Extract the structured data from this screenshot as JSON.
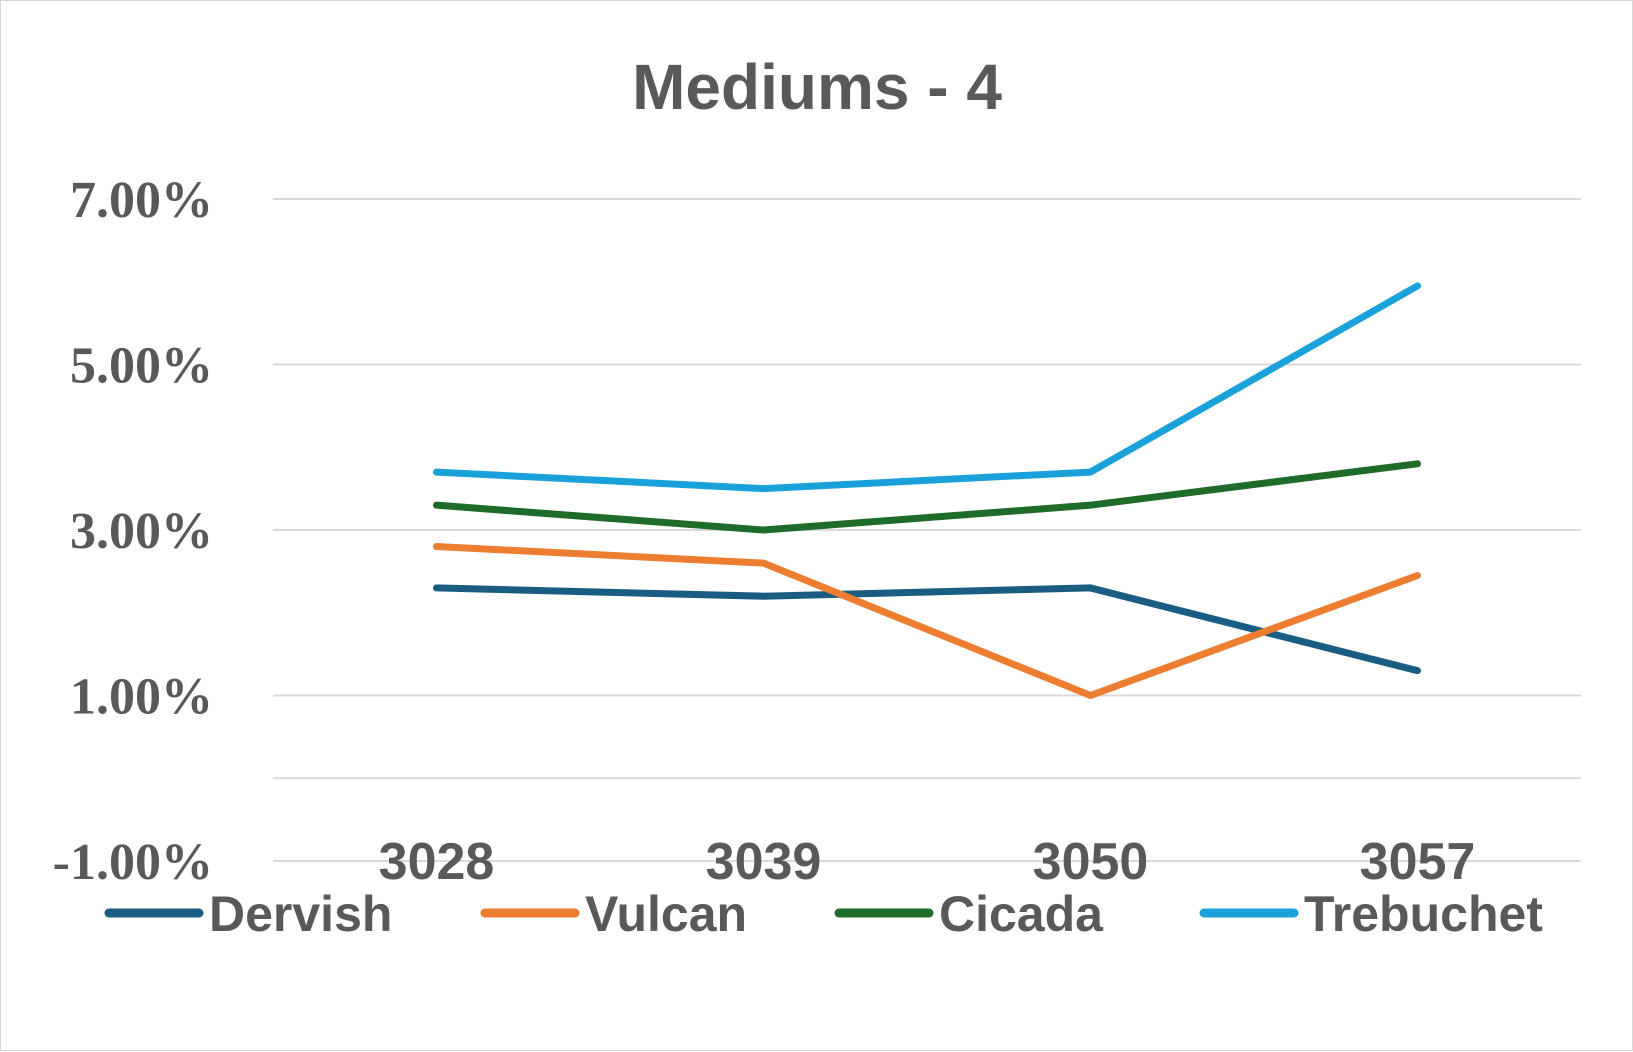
{
  "chart_data": {
    "type": "line",
    "title": "Mediums - 4",
    "categories": [
      "3028",
      "3039",
      "3050",
      "3057"
    ],
    "y_ticks": [
      "-1.00%",
      "1.00%",
      "3.00%",
      "5.00%",
      "7.00%"
    ],
    "ylim": [
      -1.0,
      7.0
    ],
    "y_gridlines": [
      -1.0,
      0.0,
      1.0,
      3.0,
      5.0,
      7.0
    ],
    "grid": true,
    "legend_position": "bottom",
    "series": [
      {
        "name": "Dervish",
        "color": "#1a5d82",
        "values": [
          2.3,
          2.2,
          2.3,
          1.3
        ]
      },
      {
        "name": "Vulcan",
        "color": "#ed7d31",
        "values": [
          2.8,
          2.6,
          1.0,
          2.45
        ]
      },
      {
        "name": "Cicada",
        "color": "#1e6b2a",
        "values": [
          3.3,
          3.0,
          3.3,
          3.8
        ]
      },
      {
        "name": "Trebuchet",
        "color": "#1ba1d9",
        "values": [
          3.7,
          3.5,
          3.7,
          5.95
        ]
      }
    ]
  }
}
